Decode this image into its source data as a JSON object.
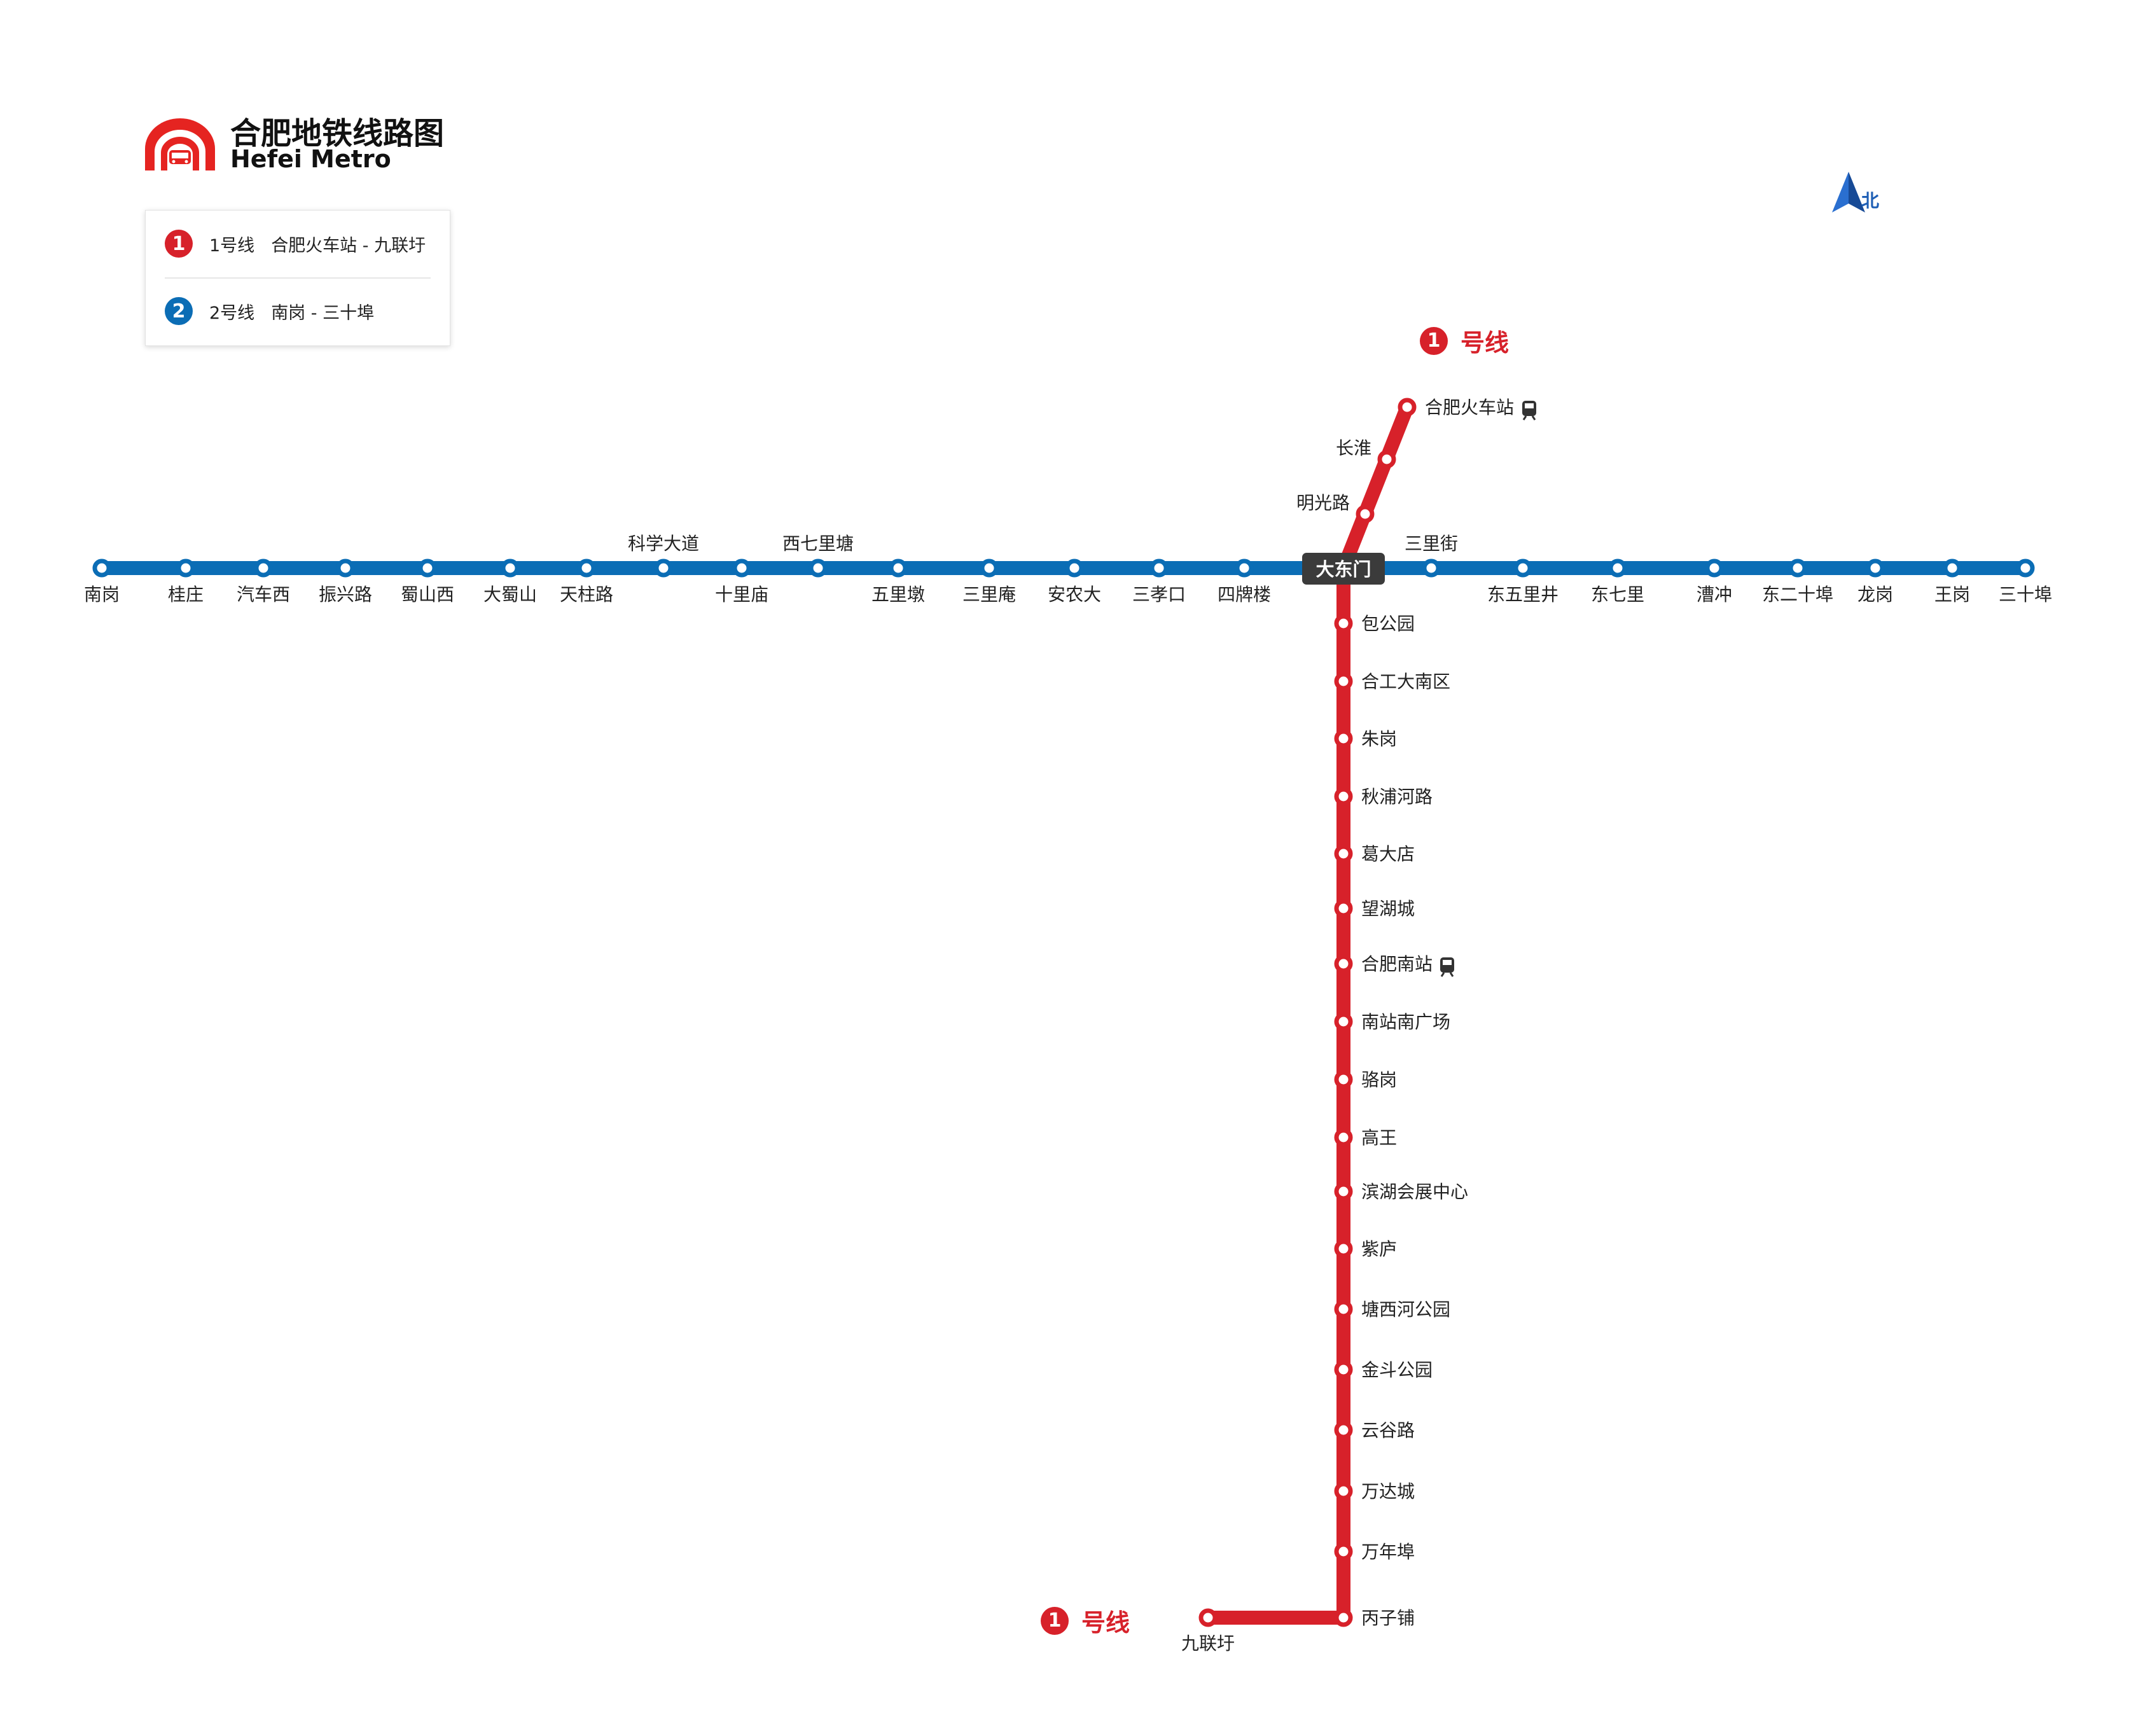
{
  "header": {
    "title_cn": "合肥地铁线路图",
    "title_en": "Hefei Metro"
  },
  "legend": [
    {
      "badge": "1",
      "line": "1号线",
      "route": "合肥火车站 - 九联圩",
      "color": "#d7212a"
    },
    {
      "badge": "2",
      "line": "2号线",
      "route": "南岗 - 三十埠",
      "color": "#0b6db5"
    }
  ],
  "compass": {
    "label": "北",
    "icon": "north-arrow-icon"
  },
  "line_tags": [
    {
      "badge": "1",
      "text": "号线",
      "color": "#d7212a"
    },
    {
      "badge": "1",
      "text": "号线",
      "color": "#d7212a"
    }
  ],
  "transfer_station": "大东门",
  "line2": {
    "color": "#0b6db5",
    "stations": [
      "南岗",
      "桂庄",
      "汽车西",
      "振兴路",
      "蜀山西",
      "大蜀山",
      "天柱路",
      "科学大道",
      "十里庙",
      "西七里塘",
      "五里墩",
      "三里庵",
      "安农大",
      "三孝口",
      "四牌楼",
      "大东门",
      "三里街",
      "东五里井",
      "东七里",
      "漕冲",
      "东二十埠",
      "龙岗",
      "王岗",
      "三十埠"
    ]
  },
  "line1": {
    "color": "#d7212a",
    "stations": [
      "合肥火车站",
      "长淮",
      "明光路",
      "大东门",
      "包公园",
      "合工大南区",
      "朱岗",
      "秋浦河路",
      "葛大店",
      "望湖城",
      "合肥南站",
      "南站南广场",
      "骆岗",
      "高王",
      "滨湖会展中心",
      "紫庐",
      "塘西河公园",
      "金斗公园",
      "云谷路",
      "万达城",
      "万年埠",
      "丙子铺",
      "九联圩"
    ],
    "rail_icon_stations": [
      "合肥火车站",
      "合肥南站"
    ]
  }
}
